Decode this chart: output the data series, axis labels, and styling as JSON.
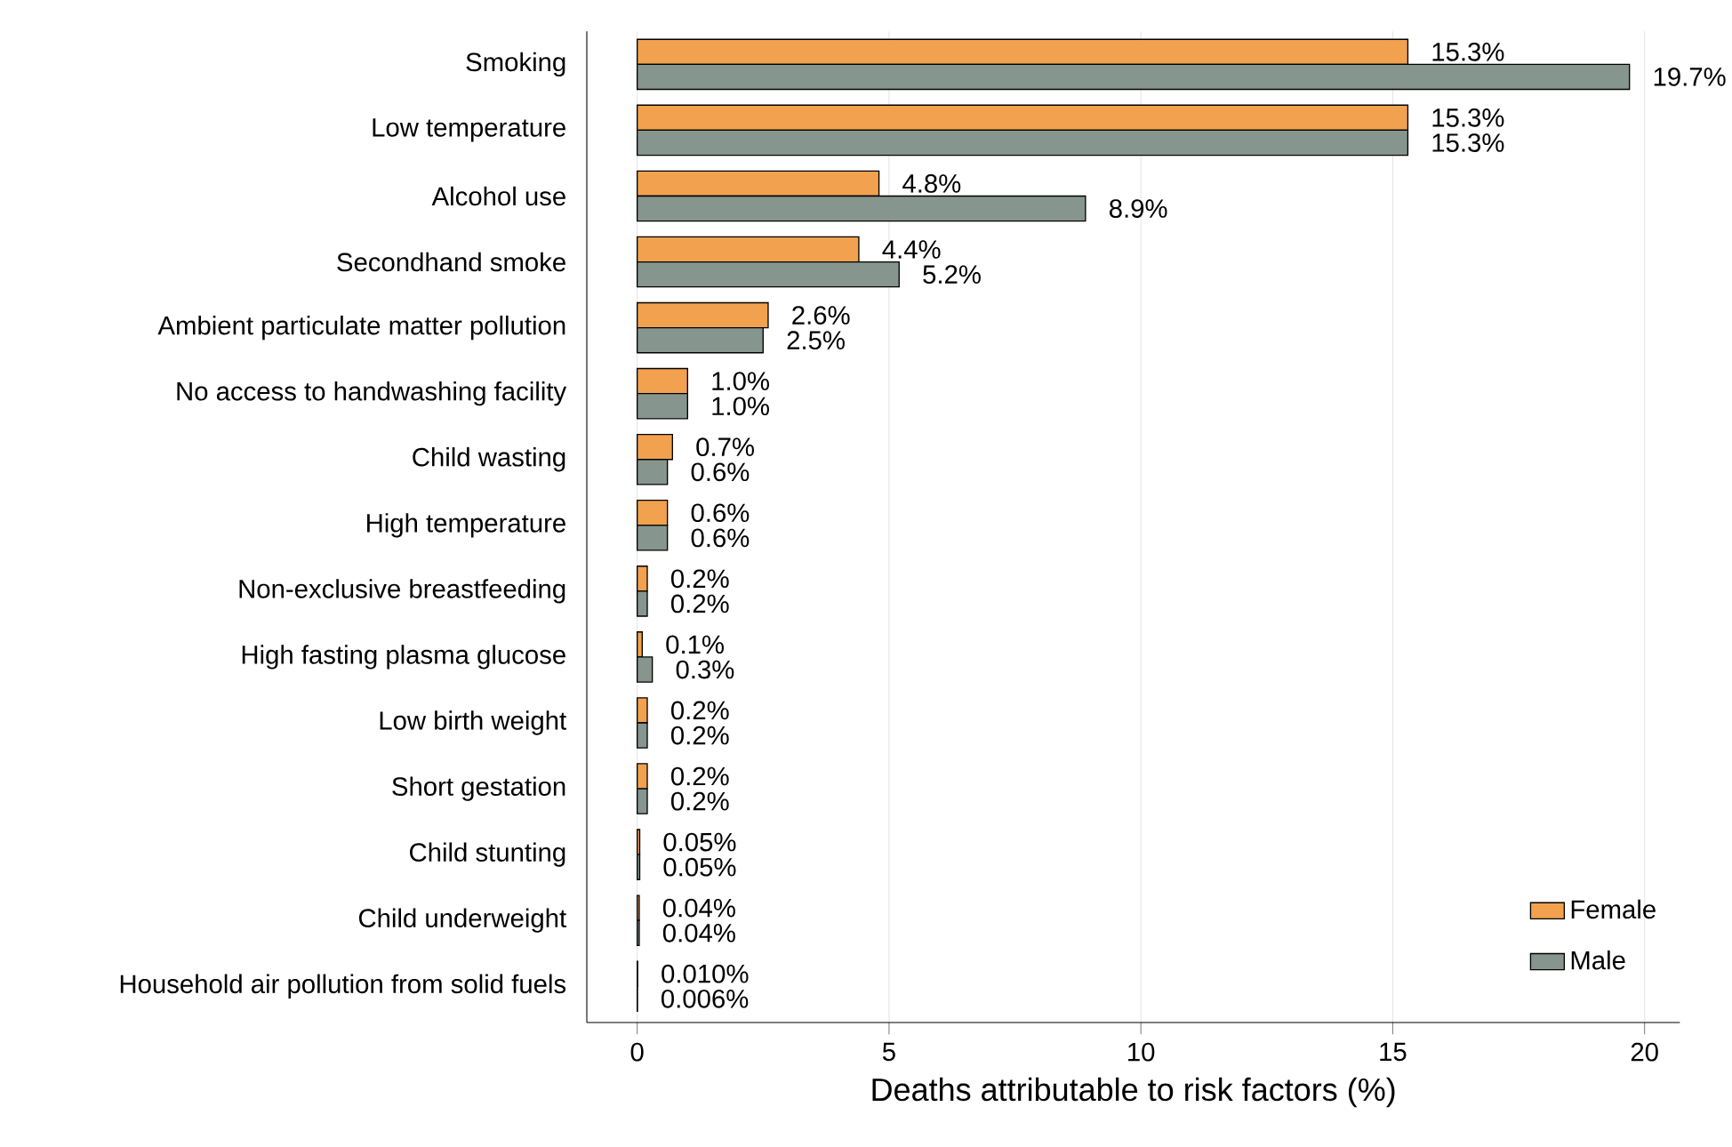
{
  "chart_data": {
    "type": "bar",
    "orientation": "horizontal",
    "xlabel": "Deaths attributable to risk factors (%)",
    "categories": [
      "Smoking",
      "Low temperature",
      "Alcohol use",
      "Secondhand smoke",
      "Ambient particulate matter pollution",
      "No access to handwashing facility",
      "Child wasting",
      "High temperature",
      "Non-exclusive breastfeeding",
      "High fasting plasma glucose",
      "Low birth weight",
      "Short gestation",
      "Child stunting",
      "Child underweight",
      "Household air pollution from solid fuels"
    ],
    "series": [
      {
        "name": "Female",
        "color": "#f2a14e",
        "values": [
          15.3,
          15.3,
          4.8,
          4.4,
          2.6,
          1.0,
          0.7,
          0.6,
          0.2,
          0.1,
          0.2,
          0.2,
          0.05,
          0.04,
          0.01
        ],
        "value_labels": [
          "15.3%",
          "15.3%",
          "4.8%",
          "4.4%",
          "2.6%",
          "1.0%",
          "0.7%",
          "0.6%",
          "0.2%",
          "0.1%",
          "0.2%",
          "0.2%",
          "0.05%",
          "0.04%",
          "0.010%"
        ]
      },
      {
        "name": "Male",
        "color": "#86968f",
        "values": [
          19.7,
          15.3,
          8.9,
          5.2,
          2.5,
          1.0,
          0.6,
          0.6,
          0.2,
          0.3,
          0.2,
          0.2,
          0.05,
          0.04,
          0.006
        ],
        "value_labels": [
          "19.7%",
          "15.3%",
          "8.9%",
          "5.2%",
          "2.5%",
          "1.0%",
          "0.6%",
          "0.6%",
          "0.2%",
          "0.3%",
          "0.2%",
          "0.2%",
          "0.05%",
          "0.04%",
          "0.006%"
        ]
      }
    ],
    "xlim": [
      -1,
      20.7
    ],
    "xticks": [
      0,
      5,
      10,
      15,
      20
    ],
    "grid": "x",
    "legend": "bottom right"
  }
}
